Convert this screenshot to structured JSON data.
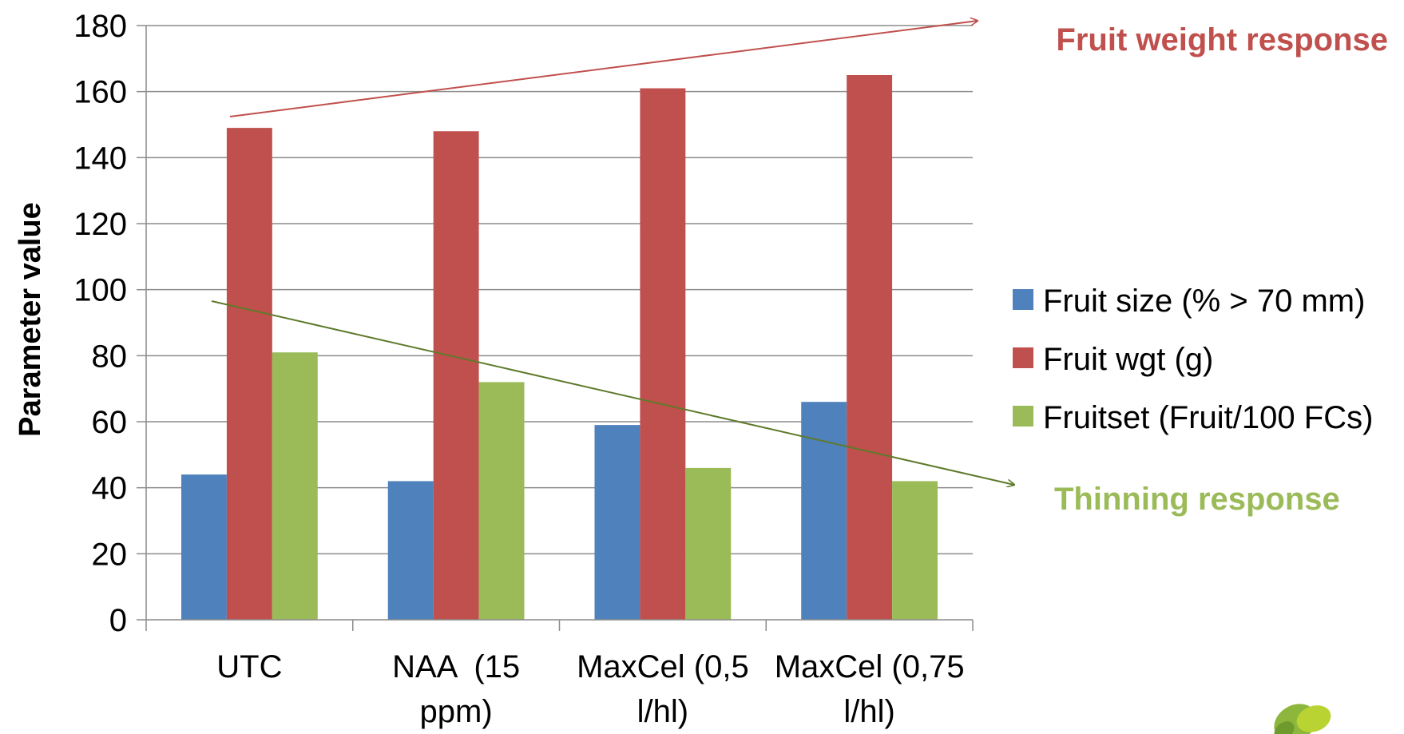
{
  "chart_data": {
    "type": "bar",
    "categories": [
      [
        "UTC"
      ],
      [
        "NAA  (15",
        "ppm)"
      ],
      [
        "MaxCel (0,5",
        "l/hl)"
      ],
      [
        "MaxCel (0,75",
        "l/hl)"
      ]
    ],
    "series": [
      {
        "name": "Fruit size (% > 70 mm)",
        "color": "#4F81BD",
        "values": [
          44,
          42,
          59,
          66
        ]
      },
      {
        "name": "Fruit wgt (g)",
        "color": "#C0504D",
        "values": [
          149,
          148,
          161,
          165
        ]
      },
      {
        "name": "Fruitset (Fruit/100 FCs)",
        "color": "#9BBB59",
        "values": [
          81,
          72,
          46,
          42
        ]
      }
    ],
    "ylabel": "Parameter value",
    "ylim": [
      0,
      180
    ],
    "yticks": [
      0,
      20,
      40,
      60,
      80,
      100,
      120,
      140,
      160,
      180
    ],
    "grid": true,
    "legend_position": "right",
    "annotations": [
      {
        "text": "Fruit weight response",
        "color": "#C0504D",
        "arrow": "up-right"
      },
      {
        "text": "Thinning response",
        "color": "#9BBB59",
        "arrow": "down-right"
      }
    ],
    "arrow_colors": {
      "weight": "#C0504D",
      "thinning": "#5E7A2A"
    },
    "logo": "leaf-logo"
  }
}
